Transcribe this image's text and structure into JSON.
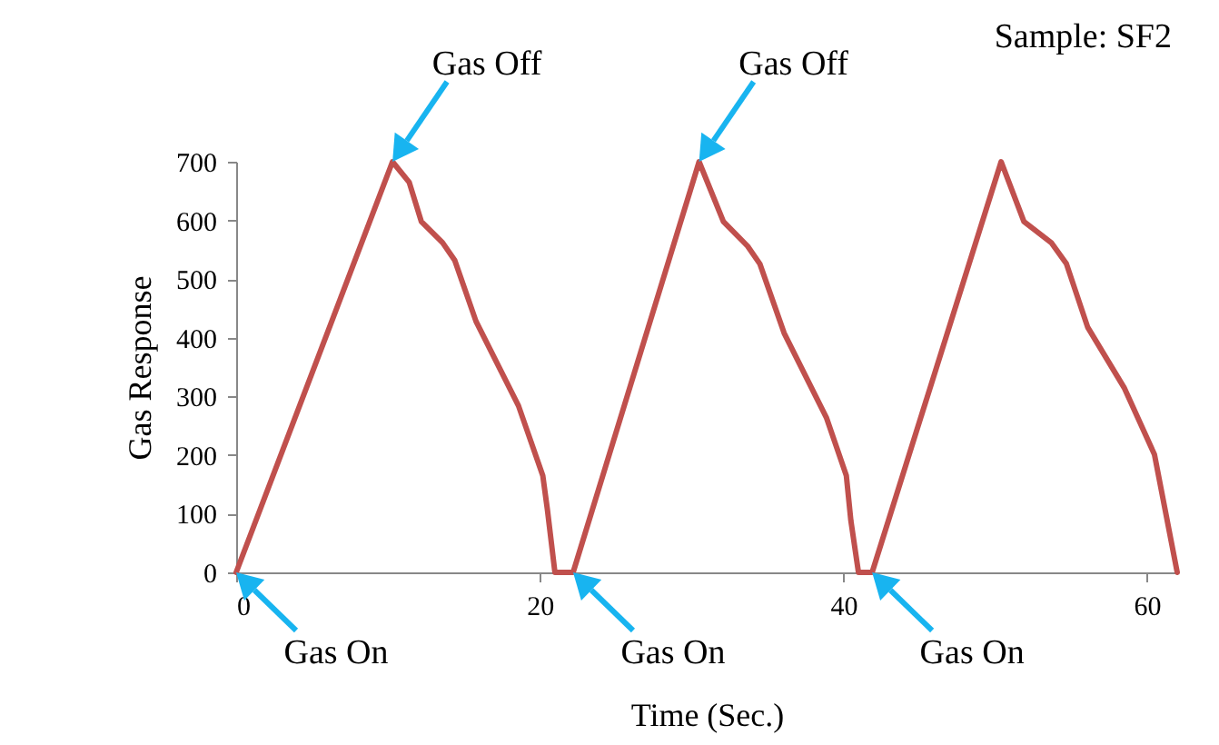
{
  "chart_data": {
    "type": "line",
    "xlabel": "Time (Sec.)",
    "ylabel": "Gas Response",
    "x": [
      0,
      10.3,
      11.4,
      12.2,
      13.6,
      14.4,
      15.8,
      18.6,
      20.2,
      20.5,
      21.0,
      22.2,
      30.5,
      32.1,
      33.7,
      34.5,
      36.1,
      38.9,
      40.2,
      40.5,
      41.0,
      41.9,
      50.4,
      51.9,
      53.7,
      54.7,
      56.1,
      58.5,
      60.5,
      62.0
    ],
    "series": [
      {
        "color": "#c0504d",
        "values": [
          0,
          700,
          665,
          598,
          562,
          532,
          428,
          284,
          165,
          108,
          0,
          0,
          700,
          598,
          556,
          526,
          408,
          263,
          165,
          88,
          0,
          0,
          700,
          598,
          562,
          526,
          418,
          315,
          201,
          0
        ]
      }
    ],
    "xlim": [
      0,
      62
    ],
    "xticks": [
      0,
      20,
      40,
      60
    ],
    "ylim": [
      0,
      700
    ],
    "yticks": [
      0,
      100,
      200,
      300,
      400,
      500,
      600,
      700
    ],
    "annotations": [
      "Sample: SF2",
      {
        "text": "Gas Off",
        "x": 10.3,
        "y": 700
      },
      {
        "text": "Gas Off",
        "x": 30.5,
        "y": 700
      },
      {
        "text": "Gas On",
        "x": 0,
        "y": 0
      },
      {
        "text": "Gas On",
        "x": 22.2,
        "y": 0
      },
      {
        "text": "Gas On",
        "x": 41.9,
        "y": 0
      }
    ]
  }
}
